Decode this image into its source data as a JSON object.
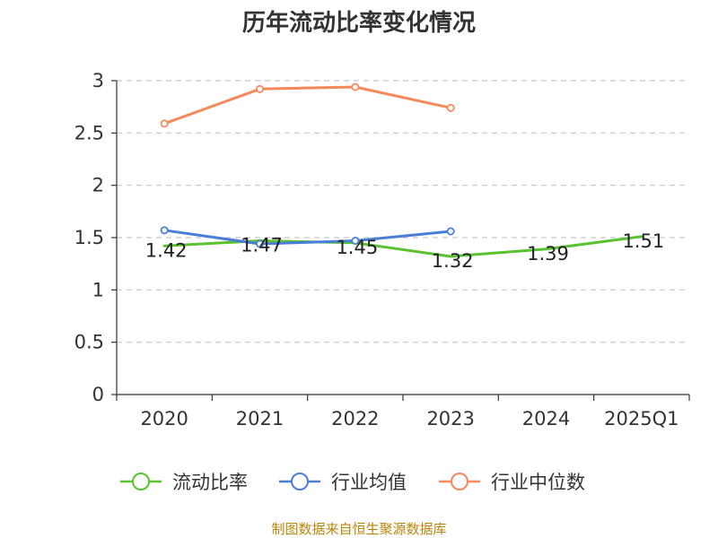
{
  "chart_data": {
    "type": "line",
    "title": "历年流动比率变化情况",
    "categories": [
      "2020",
      "2021",
      "2022",
      "2023",
      "2024",
      "2025Q1"
    ],
    "ylim": [
      0,
      3
    ],
    "yticks": [
      "0",
      "0.5",
      "1",
      "1.5",
      "2",
      "2.5",
      "3"
    ],
    "grid": true,
    "legend_position": "bottom",
    "series": [
      {
        "name": "流动比率",
        "color": "#5ac12f",
        "values": [
          1.42,
          1.47,
          1.45,
          1.32,
          1.39,
          1.51
        ],
        "data_labels": [
          "1.42",
          "1.47",
          "1.45",
          "1.32",
          "1.39",
          "1.51"
        ],
        "show_markers": false
      },
      {
        "name": "行业均值",
        "color": "#4a7fd8",
        "values": [
          1.57,
          1.44,
          1.47,
          1.56,
          null,
          null
        ],
        "show_markers": true
      },
      {
        "name": "行业中位数",
        "color": "#f5895a",
        "values": [
          2.59,
          2.92,
          2.94,
          2.74,
          null,
          null
        ],
        "show_markers": true
      }
    ]
  },
  "source": "制图数据来自恒生聚源数据库"
}
